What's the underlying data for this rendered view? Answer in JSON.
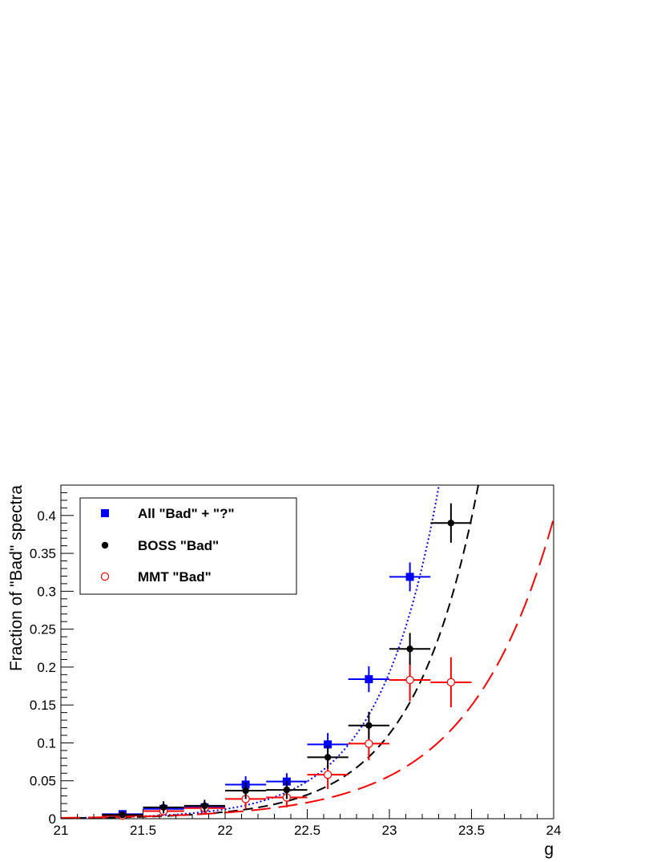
{
  "chart_data": {
    "type": "scatter",
    "xlabel": "g",
    "ylabel": "Fraction of \"Bad\" spectra",
    "xlim": [
      21,
      24
    ],
    "ylim": [
      0,
      0.44
    ],
    "x_ticks": [
      "21",
      "21.5",
      "22",
      "22.5",
      "23",
      "23.5",
      "24"
    ],
    "y_ticks": [
      "0",
      "0.05",
      "0.1",
      "0.15",
      "0.2",
      "0.25",
      "0.3",
      "0.35",
      "0.4"
    ],
    "legend_position": "top-left",
    "series": [
      {
        "name": "All \"Bad\" + \"?\"",
        "marker": "filled-square",
        "color": "#0000ff",
        "fit_style": "dotted",
        "fit": {
          "a": 0.00082,
          "b": 2.73
        },
        "points": [
          {
            "x": 21.375,
            "y": 0.006,
            "yerr": 0.005
          },
          {
            "x": 21.625,
            "y": 0.013,
            "yerr": 0.007
          },
          {
            "x": 21.875,
            "y": 0.015,
            "yerr": 0.007
          },
          {
            "x": 22.125,
            "y": 0.045,
            "yerr": 0.011
          },
          {
            "x": 22.375,
            "y": 0.049,
            "yerr": 0.011
          },
          {
            "x": 22.625,
            "y": 0.098,
            "yerr": 0.015
          },
          {
            "x": 22.875,
            "y": 0.184,
            "yerr": 0.017
          },
          {
            "x": 23.125,
            "y": 0.319,
            "yerr": 0.019
          }
        ]
      },
      {
        "name": "BOSS \"Bad\"",
        "marker": "filled-circle",
        "color": "#000000",
        "fit_style": "dashed",
        "fit": {
          "a": 0.00071,
          "b": 2.53
        },
        "points": [
          {
            "x": 21.375,
            "y": 0.005,
            "yerr": 0.004
          },
          {
            "x": 21.625,
            "y": 0.015,
            "yerr": 0.008
          },
          {
            "x": 21.875,
            "y": 0.017,
            "yerr": 0.008
          },
          {
            "x": 22.125,
            "y": 0.037,
            "yerr": 0.011
          },
          {
            "x": 22.375,
            "y": 0.038,
            "yerr": 0.012
          },
          {
            "x": 22.625,
            "y": 0.081,
            "yerr": 0.015
          },
          {
            "x": 22.875,
            "y": 0.123,
            "yerr": 0.018
          },
          {
            "x": 23.125,
            "y": 0.224,
            "yerr": 0.021
          },
          {
            "x": 23.375,
            "y": 0.39,
            "yerr": 0.026
          }
        ]
      },
      {
        "name": "MMT \"Bad\"",
        "marker": "open-circle",
        "color": "#ff0000",
        "fit_style": "long-dashed",
        "fit": {
          "a": 0.00114,
          "b": 1.95
        },
        "points": [
          {
            "x": 21.375,
            "y": 0.004,
            "yerr": 0.003
          },
          {
            "x": 21.625,
            "y": 0.01,
            "yerr": 0.006
          },
          {
            "x": 21.875,
            "y": 0.014,
            "yerr": 0.008
          },
          {
            "x": 22.125,
            "y": 0.026,
            "yerr": 0.013
          },
          {
            "x": 22.375,
            "y": 0.028,
            "yerr": 0.013
          },
          {
            "x": 22.625,
            "y": 0.058,
            "yerr": 0.019
          },
          {
            "x": 22.875,
            "y": 0.099,
            "yerr": 0.022
          },
          {
            "x": 23.125,
            "y": 0.183,
            "yerr": 0.028
          },
          {
            "x": 23.375,
            "y": 0.18,
            "yerr": 0.033
          }
        ]
      }
    ]
  }
}
